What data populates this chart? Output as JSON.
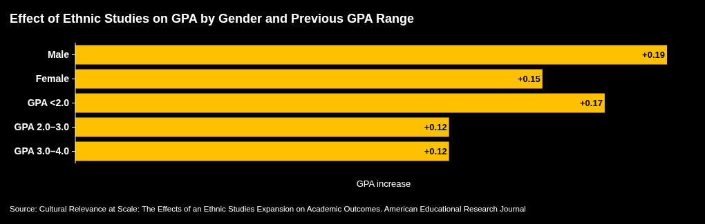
{
  "chart_data": {
    "type": "bar",
    "orientation": "horizontal",
    "title": "Effect of Ethnic Studies on GPA by Gender and Previous GPA Range",
    "xlabel": "GPA increase",
    "categories": [
      "Male",
      "Female",
      "GPA <2.0",
      "GPA 2.0–3.0",
      "GPA 3.0–4.0"
    ],
    "values": [
      0.19,
      0.15,
      0.17,
      0.12,
      0.12
    ],
    "value_labels": [
      "+0.19",
      "+0.15",
      "+0.17",
      "+0.12",
      "+0.12"
    ],
    "color": "#ffc000",
    "tick_labels": "y",
    "annotations": [
      "Source: Cultural Relevance at Scale: The Effects of an Ethnic Studies Expansion on Academic Outcomes. American Educational Research Journal"
    ]
  }
}
